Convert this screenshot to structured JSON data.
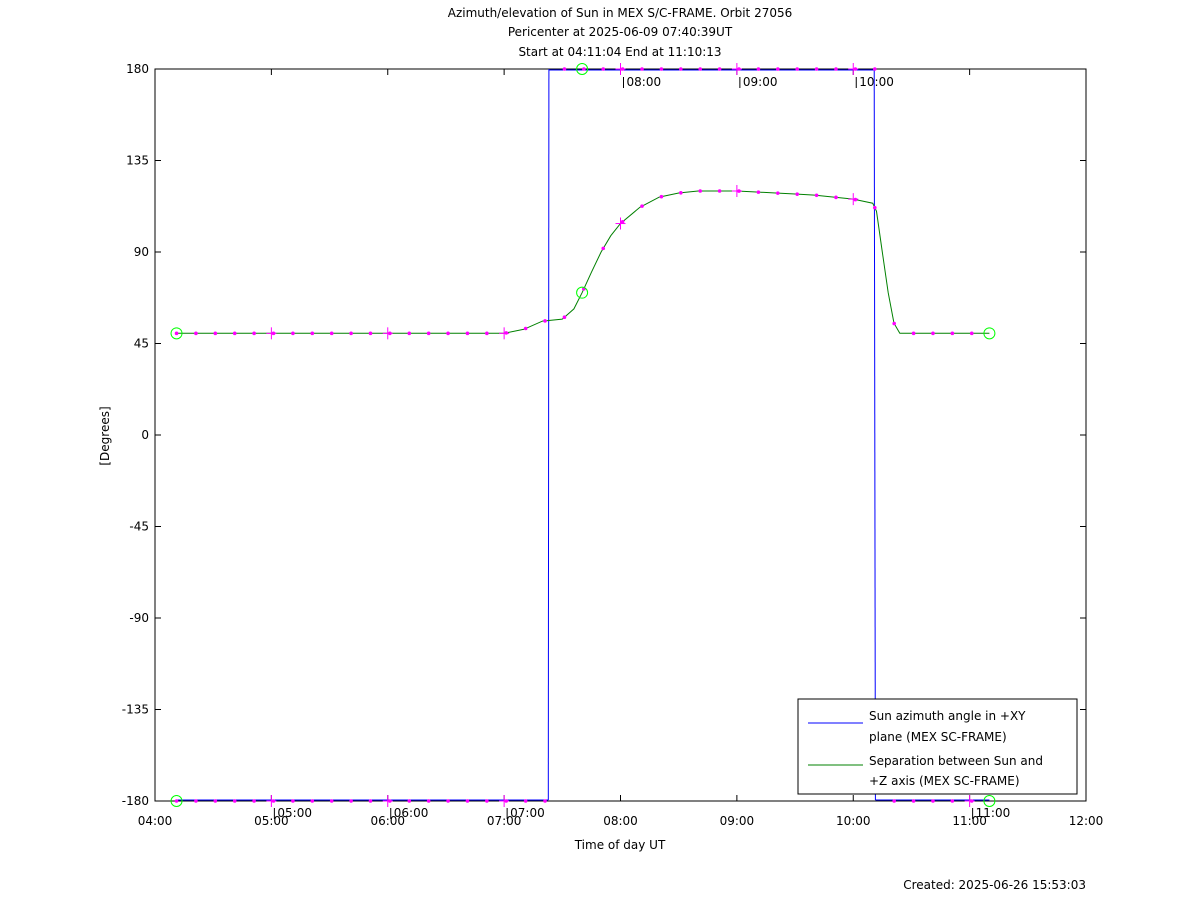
{
  "chart_data": {
    "type": "line",
    "title_lines": [
      "Azimuth/elevation of Sun in MEX S/C-FRAME.  Orbit 27056",
      "Pericenter at 2025-06-09 07:40:39UT",
      "Start at 04:11:04 End at 11:10:13"
    ],
    "xlabel": "Time of day UT",
    "ylabel": "[Degrees]",
    "footer": "Created: 2025-06-26 15:53:03",
    "xlim": [
      4.0,
      12.0
    ],
    "ylim": [
      -180,
      180
    ],
    "x_ticks": [
      {
        "value": 4,
        "label": "04:00"
      },
      {
        "value": 5,
        "label": "05:00"
      },
      {
        "value": 6,
        "label": "06:00"
      },
      {
        "value": 7,
        "label": "07:00"
      },
      {
        "value": 8,
        "label": "08:00"
      },
      {
        "value": 9,
        "label": "09:00"
      },
      {
        "value": 10,
        "label": "10:00"
      },
      {
        "value": 11,
        "label": "11:00"
      },
      {
        "value": 12,
        "label": "12:00"
      }
    ],
    "y_ticks": [
      {
        "value": 180,
        "label": "180"
      },
      {
        "value": 135,
        "label": "135"
      },
      {
        "value": 90,
        "label": "90"
      },
      {
        "value": 45,
        "label": "45"
      },
      {
        "value": 0,
        "label": "0"
      },
      {
        "value": -45,
        "label": "-45"
      },
      {
        "value": -90,
        "label": "-90"
      },
      {
        "value": -135,
        "label": "-135"
      },
      {
        "value": -180,
        "label": "-180"
      }
    ],
    "hour_marks_top": [
      {
        "x": 8.0,
        "label": "08:00"
      },
      {
        "x": 9.0,
        "label": "09:00"
      },
      {
        "x": 10.0,
        "label": "10:00"
      }
    ],
    "hour_marks_bottom": [
      {
        "x": 5.0,
        "label": "05:00"
      },
      {
        "x": 6.0,
        "label": "06:00"
      },
      {
        "x": 7.0,
        "label": "07:00"
      },
      {
        "x": 11.0,
        "label": "11:00"
      }
    ],
    "legend": {
      "position": "bottom-right",
      "entries": [
        {
          "lines": [
            "Sun azimuth angle in +XY",
            "plane (MEX SC-FRAME)"
          ],
          "color": "#0000ff"
        },
        {
          "lines": [
            "Separation between Sun and",
            "+Z axis (MEX SC-FRAME)"
          ],
          "color": "#008000"
        }
      ]
    },
    "series": [
      {
        "name": "Sun azimuth angle in +XY plane (MEX SC-FRAME)",
        "color": "#0000ff",
        "segments": [
          [
            [
              4.185,
              -179.5
            ],
            [
              7.38,
              -179.5
            ]
          ],
          [
            [
              7.38,
              -179.5
            ],
            [
              7.385,
              180
            ]
          ],
          [
            [
              7.385,
              179.5
            ],
            [
              10.18,
              179.5
            ]
          ],
          [
            [
              10.18,
              180
            ],
            [
              10.19,
              -179.5
            ]
          ],
          [
            [
              10.19,
              -179.5
            ],
            [
              11.17,
              -179.5
            ]
          ]
        ]
      },
      {
        "name": "Separation between Sun and +Z axis (MEX SC-FRAME)",
        "color": "#008000",
        "points": [
          [
            4.185,
            50
          ],
          [
            4.5,
            50
          ],
          [
            5.0,
            50
          ],
          [
            5.5,
            50
          ],
          [
            6.0,
            50
          ],
          [
            6.5,
            50
          ],
          [
            7.0,
            50
          ],
          [
            7.17,
            52
          ],
          [
            7.33,
            56
          ],
          [
            7.5,
            57
          ],
          [
            7.6,
            62
          ],
          [
            7.67,
            70
          ],
          [
            7.75,
            80
          ],
          [
            7.833,
            90
          ],
          [
            7.917,
            98
          ],
          [
            8.0,
            104
          ],
          [
            8.167,
            112
          ],
          [
            8.333,
            117
          ],
          [
            8.5,
            119
          ],
          [
            8.667,
            120
          ],
          [
            8.833,
            120
          ],
          [
            9.0,
            120
          ],
          [
            9.167,
            119.5
          ],
          [
            9.333,
            119
          ],
          [
            9.5,
            118.5
          ],
          [
            9.667,
            118
          ],
          [
            9.833,
            117
          ],
          [
            10.0,
            116
          ],
          [
            10.167,
            114
          ],
          [
            10.2,
            110
          ],
          [
            10.25,
            90
          ],
          [
            10.3,
            70
          ],
          [
            10.35,
            55
          ],
          [
            10.4,
            50
          ],
          [
            10.5,
            50
          ],
          [
            10.75,
            50
          ],
          [
            11.0,
            50
          ],
          [
            11.17,
            50
          ]
        ]
      }
    ],
    "markers": {
      "color": "#ff00ff",
      "start_end_color": "#00ff00",
      "circle_points": [
        [
          4.185,
          50
        ],
        [
          11.17,
          50
        ],
        [
          4.185,
          -180
        ],
        [
          11.17,
          -180
        ],
        [
          7.67,
          70
        ],
        [
          7.67,
          180
        ]
      ],
      "plus_points": [
        [
          5.0,
          50
        ],
        [
          6.0,
          50
        ],
        [
          7.0,
          50
        ],
        [
          8.0,
          104
        ],
        [
          9.0,
          120
        ],
        [
          10.0,
          116
        ],
        [
          8.0,
          180
        ],
        [
          9.0,
          180
        ],
        [
          10.0,
          180
        ],
        [
          5.0,
          -180
        ],
        [
          6.0,
          -180
        ],
        [
          7.0,
          -180
        ],
        [
          11.0,
          -180
        ]
      ]
    }
  }
}
